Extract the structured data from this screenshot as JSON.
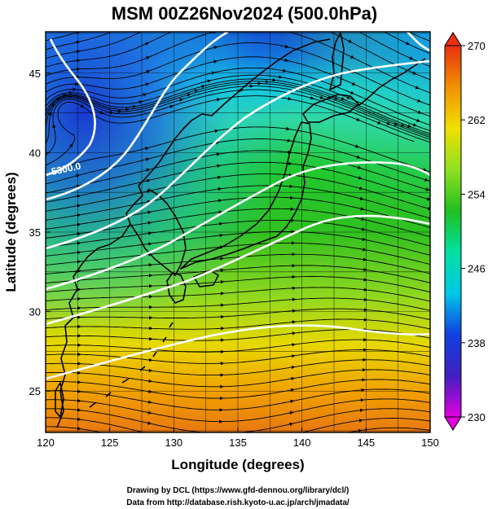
{
  "title": "MSM 00Z26Nov2024 (500.0hPa)",
  "x_axis": {
    "label": "Longitude (degrees)",
    "range": [
      120,
      150
    ],
    "ticks": [
      120,
      125,
      130,
      135,
      140,
      145,
      150
    ]
  },
  "y_axis": {
    "label": "Latitude  (degrees)",
    "range": [
      22.4,
      47.6
    ],
    "ticks": [
      25,
      30,
      35,
      40,
      45
    ]
  },
  "colorbar": {
    "range": [
      230,
      270
    ],
    "ticks": [
      230,
      238,
      246,
      254,
      262,
      270
    ],
    "colors": [
      "#e000e0",
      "#4020c0",
      "#1040e0",
      "#00c8e8",
      "#00e0a0",
      "#20c020",
      "#90e020",
      "#f0e000",
      "#f09000",
      "#e83010"
    ]
  },
  "contour_label": "5300.0",
  "contour_color": "#ffffff",
  "streamline_color": "#000000",
  "coastline_color": "#000000",
  "credits": [
    "Drawing by DCL (https://www.gfd-dennou.org/library/dcl/)",
    "Data from http://database.rish.kyoto-u.ac.jp/arch/jmadata/"
  ]
}
